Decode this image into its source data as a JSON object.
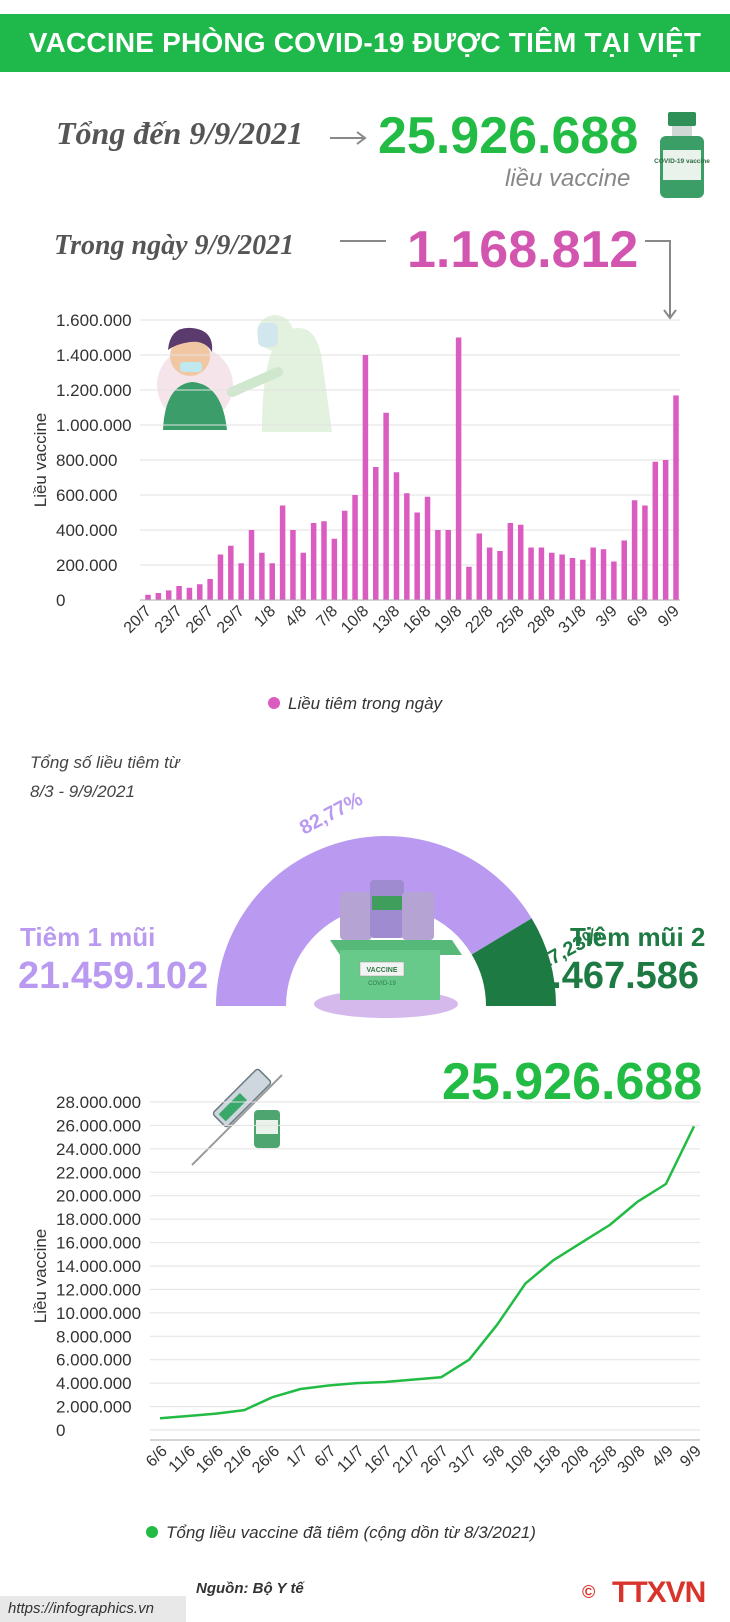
{
  "header": {
    "title": "VACCINE PHÒNG COVID-19 ĐƯỢC TIÊM TẠI VIỆT NAM"
  },
  "summary": {
    "total_label": "Tổng đến 9/9/2021",
    "total_value": "25.926.688",
    "total_unit": "liều vaccine",
    "daily_label": "Trong ngày 9/9/2021",
    "daily_value": "1.168.812",
    "vial_label": "COVID-19 vaccine"
  },
  "colors": {
    "green": "#22bb44",
    "magenta": "#d256b0",
    "bar": "#da5cc0",
    "lavender": "#b99af0",
    "darkgreen": "#1d7a43"
  },
  "chart_data": [
    {
      "type": "bar",
      "ylabel": "Liều vaccine",
      "ylim": [
        0,
        1600000
      ],
      "yticks": [
        "0",
        "200.000",
        "400.000",
        "600.000",
        "800.000",
        "1.000.000",
        "1.200.000",
        "1.400.000",
        "1.600.000"
      ],
      "xticks": [
        "20/7",
        "23/7",
        "26/7",
        "29/7",
        "1/8",
        "4/8",
        "7/8",
        "10/8",
        "13/8",
        "16/8",
        "19/8",
        "22/8",
        "25/8",
        "28/8",
        "31/8",
        "3/9",
        "6/9",
        "9/9"
      ],
      "legend": "Liều tiêm trong ngày",
      "series": [
        {
          "values": [
            30000,
            40000,
            55000,
            80000,
            70000,
            90000,
            120000,
            260000,
            310000,
            210000,
            400000,
            270000,
            210000,
            540000,
            400000,
            270000,
            440000,
            450000,
            350000,
            510000,
            600000,
            1400000,
            760000,
            1070000,
            730000,
            610000,
            500000,
            590000,
            400000,
            400000,
            1500000,
            190000,
            380000,
            300000,
            280000,
            440000,
            430000,
            300000,
            300000,
            270000,
            260000,
            240000,
            230000,
            300000,
            290000,
            220000,
            340000,
            570000,
            540000,
            790000,
            800000,
            1168812
          ]
        }
      ]
    },
    {
      "type": "pie",
      "caption": "Tổng số liều tiêm từ 8/3 - 9/9/2021",
      "categories": [
        "Tiêm 1 mũi",
        "Tiêm mũi 2"
      ],
      "values": [
        21459102,
        4467586
      ],
      "display_values": [
        "21.459.102",
        "4.467.586"
      ],
      "percent_labels": [
        "82,77%",
        "17,23%"
      ],
      "box_label": "VACCINE",
      "box_sublabel": "COVID-19"
    },
    {
      "type": "line",
      "ylabel": "Liều vaccine",
      "ylim": [
        0,
        28000000
      ],
      "yticks": [
        "0",
        "2.000.000",
        "4.000.000",
        "6.000.000",
        "8.000.000",
        "10.000.000",
        "12.000.000",
        "14.000.000",
        "16.000.000",
        "18.000.000",
        "20.000.000",
        "22.000.000",
        "24.000.000",
        "26.000.000",
        "28.000.000"
      ],
      "xticks": [
        "6/6",
        "11/6",
        "16/6",
        "21/6",
        "26/6",
        "1/7",
        "6/7",
        "11/7",
        "16/7",
        "21/7",
        "26/7",
        "31/7",
        "5/8",
        "10/8",
        "15/8",
        "20/8",
        "25/8",
        "30/8",
        "4/9",
        "9/9"
      ],
      "end_label": "25.926.688",
      "legend": "Tổng liều vaccine đã tiêm (cộng dồn từ 8/3/2021)",
      "series": [
        {
          "values": [
            1000000,
            1200000,
            1400000,
            1700000,
            2800000,
            3500000,
            3800000,
            4000000,
            4100000,
            4300000,
            4500000,
            6000000,
            9000000,
            12500000,
            14500000,
            16000000,
            17500000,
            19500000,
            21000000,
            25926688
          ]
        }
      ]
    }
  ],
  "footer": {
    "source": "Nguồn: Bộ Y tế",
    "url": "https://infographics.vn",
    "logo": "TTXVN",
    "copyright": "©"
  }
}
